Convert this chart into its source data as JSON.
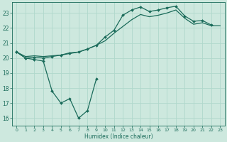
{
  "xlabel": "Humidex (Indice chaleur)",
  "bg_color": "#cde8de",
  "line_color": "#1a6b5a",
  "grid_color": "#b0d8cc",
  "xlim": [
    -0.5,
    23.5
  ],
  "ylim": [
    15.5,
    23.7
  ],
  "yticks": [
    16,
    17,
    18,
    19,
    20,
    21,
    22,
    23
  ],
  "xticks": [
    0,
    1,
    2,
    3,
    4,
    5,
    6,
    7,
    8,
    9,
    10,
    11,
    12,
    13,
    14,
    15,
    16,
    17,
    18,
    19,
    20,
    21,
    22,
    23
  ],
  "line1_y": [
    20.4,
    20.0,
    19.9,
    19.8,
    17.8,
    17.0,
    17.3,
    16.0,
    16.5,
    18.6,
    null,
    null,
    null,
    null,
    null,
    null,
    null,
    null,
    null,
    null,
    null,
    null,
    null,
    null
  ],
  "line2_y": [
    20.4,
    20.0,
    20.05,
    20.0,
    20.1,
    20.2,
    20.3,
    20.4,
    20.6,
    20.85,
    21.4,
    21.85,
    22.85,
    23.2,
    23.4,
    23.1,
    23.2,
    23.35,
    23.45,
    22.8,
    22.45,
    22.5,
    22.2,
    null
  ],
  "line3_y": [
    20.4,
    20.1,
    20.15,
    20.1,
    20.15,
    20.2,
    20.35,
    20.4,
    20.6,
    20.85,
    21.15,
    21.65,
    22.1,
    22.55,
    22.9,
    22.75,
    22.85,
    23.0,
    23.2,
    22.65,
    22.25,
    22.35,
    22.15,
    22.15
  ]
}
